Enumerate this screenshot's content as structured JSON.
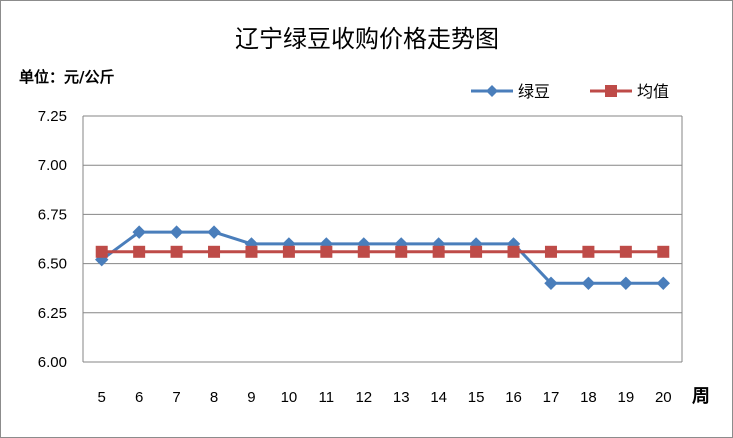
{
  "chart_data": {
    "type": "line",
    "title": "辽宁绿豆收购价格走势图",
    "unit_label": "单位：元/公斤",
    "xlabel": "周",
    "ylabel": "",
    "x": [
      "5",
      "6",
      "7",
      "8",
      "9",
      "10",
      "11",
      "12",
      "13",
      "14",
      "15",
      "16",
      "17",
      "18",
      "19",
      "20"
    ],
    "ylim": [
      6.0,
      7.25
    ],
    "yticks": [
      "7.25",
      "7.00",
      "6.75",
      "6.50",
      "6.25",
      "6.00"
    ],
    "ytick_values": [
      7.25,
      7.0,
      6.75,
      6.5,
      6.25,
      6.0
    ],
    "grid": true,
    "legend_position": "top-right",
    "series": [
      {
        "name": "绿豆",
        "color": "#4a7ebb",
        "marker": "diamond",
        "values": [
          6.52,
          6.66,
          6.66,
          6.66,
          6.6,
          6.6,
          6.6,
          6.6,
          6.6,
          6.6,
          6.6,
          6.6,
          6.4,
          6.4,
          6.4,
          6.4
        ]
      },
      {
        "name": "均值",
        "color": "#be4b48",
        "marker": "square",
        "values": [
          6.56,
          6.56,
          6.56,
          6.56,
          6.56,
          6.56,
          6.56,
          6.56,
          6.56,
          6.56,
          6.56,
          6.56,
          6.56,
          6.56,
          6.56,
          6.56
        ]
      }
    ]
  }
}
